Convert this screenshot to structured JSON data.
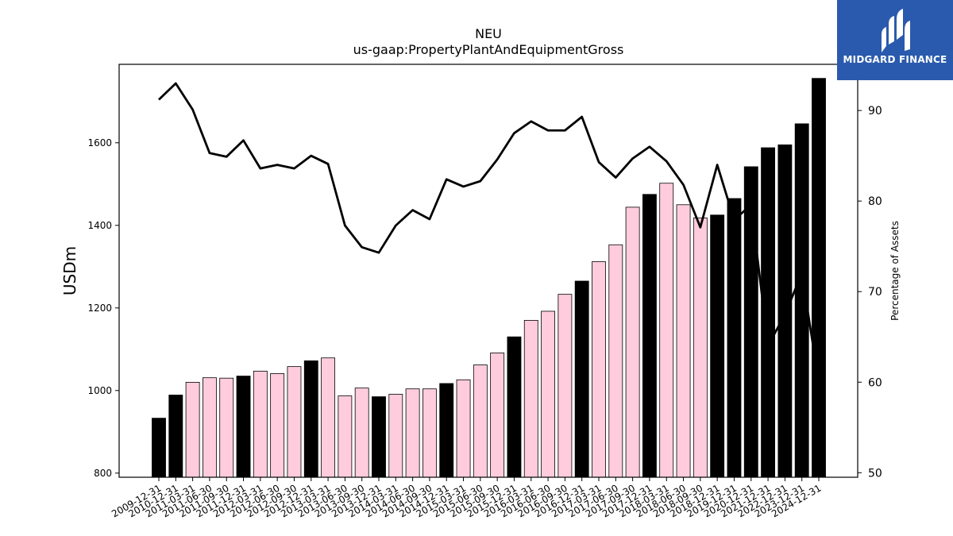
{
  "chart_data": {
    "type": "bar",
    "title": "NEU",
    "subtitle": "us-gaap:PropertyPlantAndEquipmentGross",
    "ylabel": "USDm",
    "ylabel_right": "Percentage of Assets",
    "categories": [
      "2009-12-31",
      "2010-12-31",
      "2011-03-31",
      "2011-06-30",
      "2011-09-30",
      "2011-12-31",
      "2012-03-31",
      "2012-06-30",
      "2012-09-30",
      "2012-12-31",
      "2013-03-31",
      "2013-06-30",
      "2013-09-30",
      "2013-12-31",
      "2014-03-31",
      "2014-06-30",
      "2014-09-30",
      "2014-12-31",
      "2015-03-31",
      "2015-06-30",
      "2015-09-30",
      "2015-12-31",
      "2016-03-31",
      "2016-06-30",
      "2016-09-30",
      "2016-12-31",
      "2017-03-31",
      "2017-06-30",
      "2017-09-30",
      "2017-12-31",
      "2018-03-31",
      "2018-06-30",
      "2018-09-30",
      "2018-12-31",
      "2019-12-31",
      "2020-12-31",
      "2021-12-31",
      "2022-12-31",
      "2023-12-31",
      "2024-12-31"
    ],
    "values": [
      933,
      989,
      1020,
      1031,
      1030,
      1035,
      1047,
      1041,
      1058,
      1072,
      1079,
      987,
      1006,
      985,
      991,
      1004,
      1004,
      1017,
      1026,
      1062,
      1091,
      1130,
      1170,
      1192,
      1233,
      1265,
      1312,
      1353,
      1444,
      1475,
      1502,
      1450,
      1418,
      1425,
      1465,
      1542,
      1588,
      1595,
      1646,
      1756
    ],
    "bar_kinds": [
      "annual",
      "annual",
      "quarter",
      "quarter",
      "quarter",
      "annual",
      "quarter",
      "quarter",
      "quarter",
      "annual",
      "quarter",
      "quarter",
      "quarter",
      "annual",
      "quarter",
      "quarter",
      "quarter",
      "annual",
      "quarter",
      "quarter",
      "quarter",
      "annual",
      "quarter",
      "quarter",
      "quarter",
      "annual",
      "quarter",
      "quarter",
      "quarter",
      "annual",
      "quarter",
      "quarter",
      "quarter",
      "annual",
      "annual",
      "annual",
      "annual",
      "annual",
      "annual",
      "annual"
    ],
    "colors": {
      "annual": "#000000",
      "quarter": "#ffccdd",
      "line": "#000000"
    },
    "line_values": [
      91.2,
      93.0,
      90.1,
      85.3,
      84.9,
      86.7,
      83.6,
      84.0,
      83.6,
      85.0,
      84.1,
      77.3,
      74.9,
      74.3,
      77.3,
      79.0,
      78.0,
      82.4,
      81.6,
      82.2,
      84.6,
      87.5,
      88.8,
      87.8,
      87.8,
      89.3,
      84.3,
      82.6,
      84.7,
      86.0,
      84.4,
      81.8,
      77.1,
      84.0,
      77.9,
      79.6,
      64.0,
      67.5,
      72.0,
      60.0
    ],
    "ylim": [
      790,
      1790
    ],
    "y2lim": [
      49.5,
      95.1
    ],
    "yticks": [
      800,
      1000,
      1200,
      1400,
      1600
    ],
    "y2ticks": [
      50,
      60,
      70,
      80,
      90
    ],
    "grid": false,
    "legend": "none"
  },
  "logo": {
    "text": "MIDGARD FINANCE",
    "icon": "midgard-logo-mark",
    "bg": "#2a5aad"
  }
}
